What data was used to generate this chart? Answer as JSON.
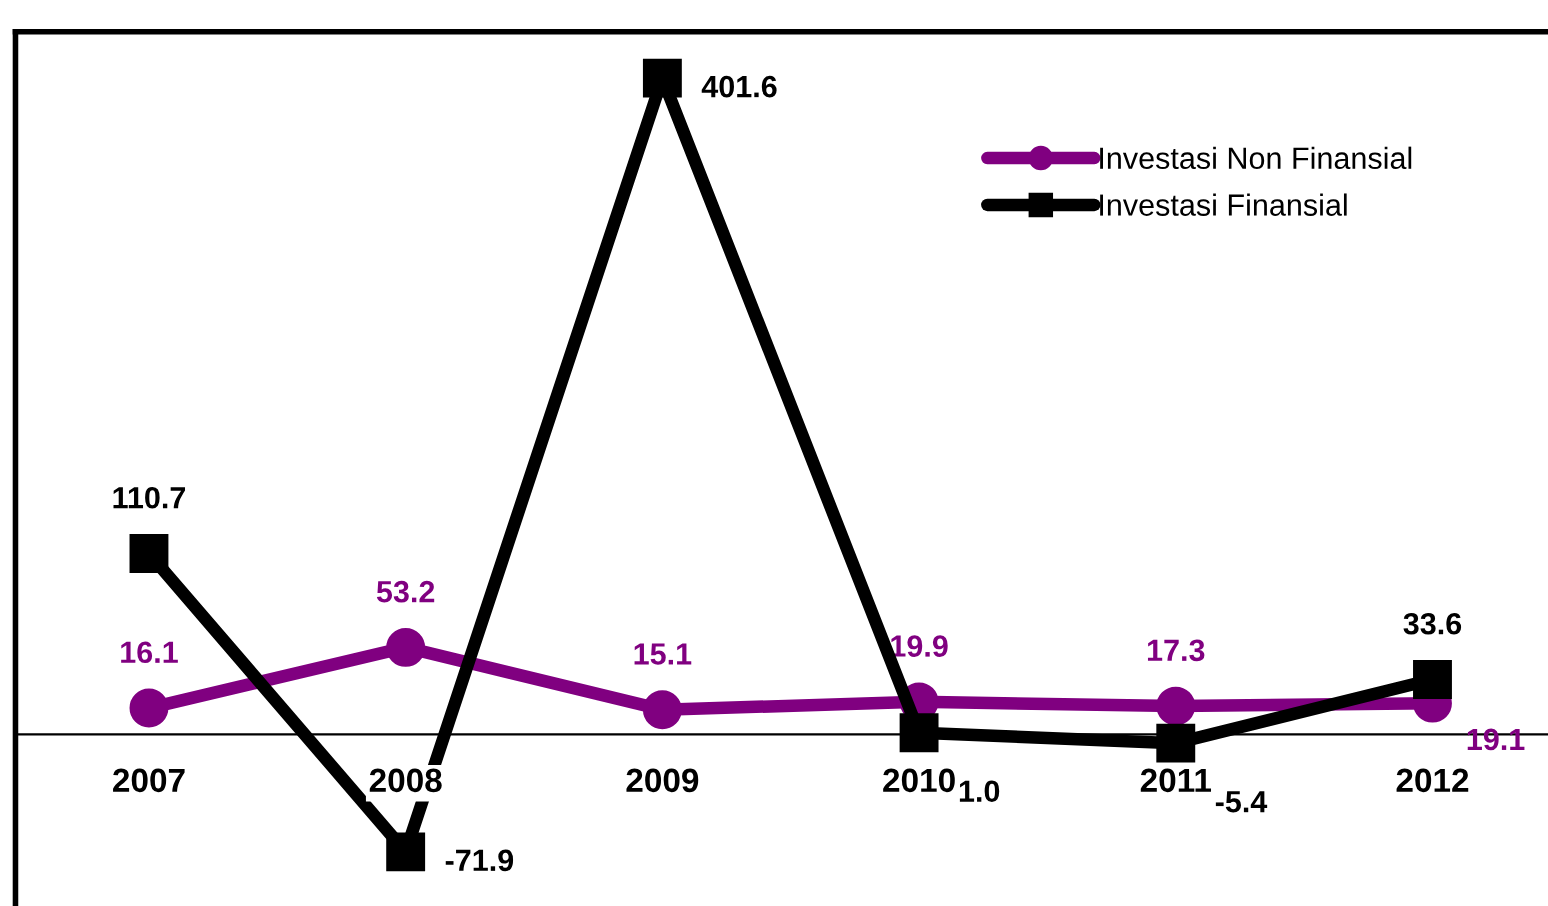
{
  "chart_data": {
    "type": "line",
    "categories": [
      "2007",
      "2008",
      "2009",
      "2010",
      "2011",
      "2012"
    ],
    "series": [
      {
        "name": "Investasi Non Finansial",
        "color": "#800080",
        "marker": "circle",
        "values": [
          16.1,
          53.2,
          15.1,
          19.9,
          17.3,
          19.1
        ]
      },
      {
        "name": "Investasi Finansial",
        "color": "#000000",
        "marker": "square",
        "values": [
          110.7,
          -71.9,
          401.6,
          1.0,
          -5.4,
          33.6
        ],
        "value_labels": [
          "110.7",
          "-71.9",
          "401.6",
          "1.0",
          "-5.4",
          "33.6"
        ]
      }
    ],
    "data_labels": true,
    "legend": "top right",
    "grid": false,
    "line_style": "solid"
  }
}
